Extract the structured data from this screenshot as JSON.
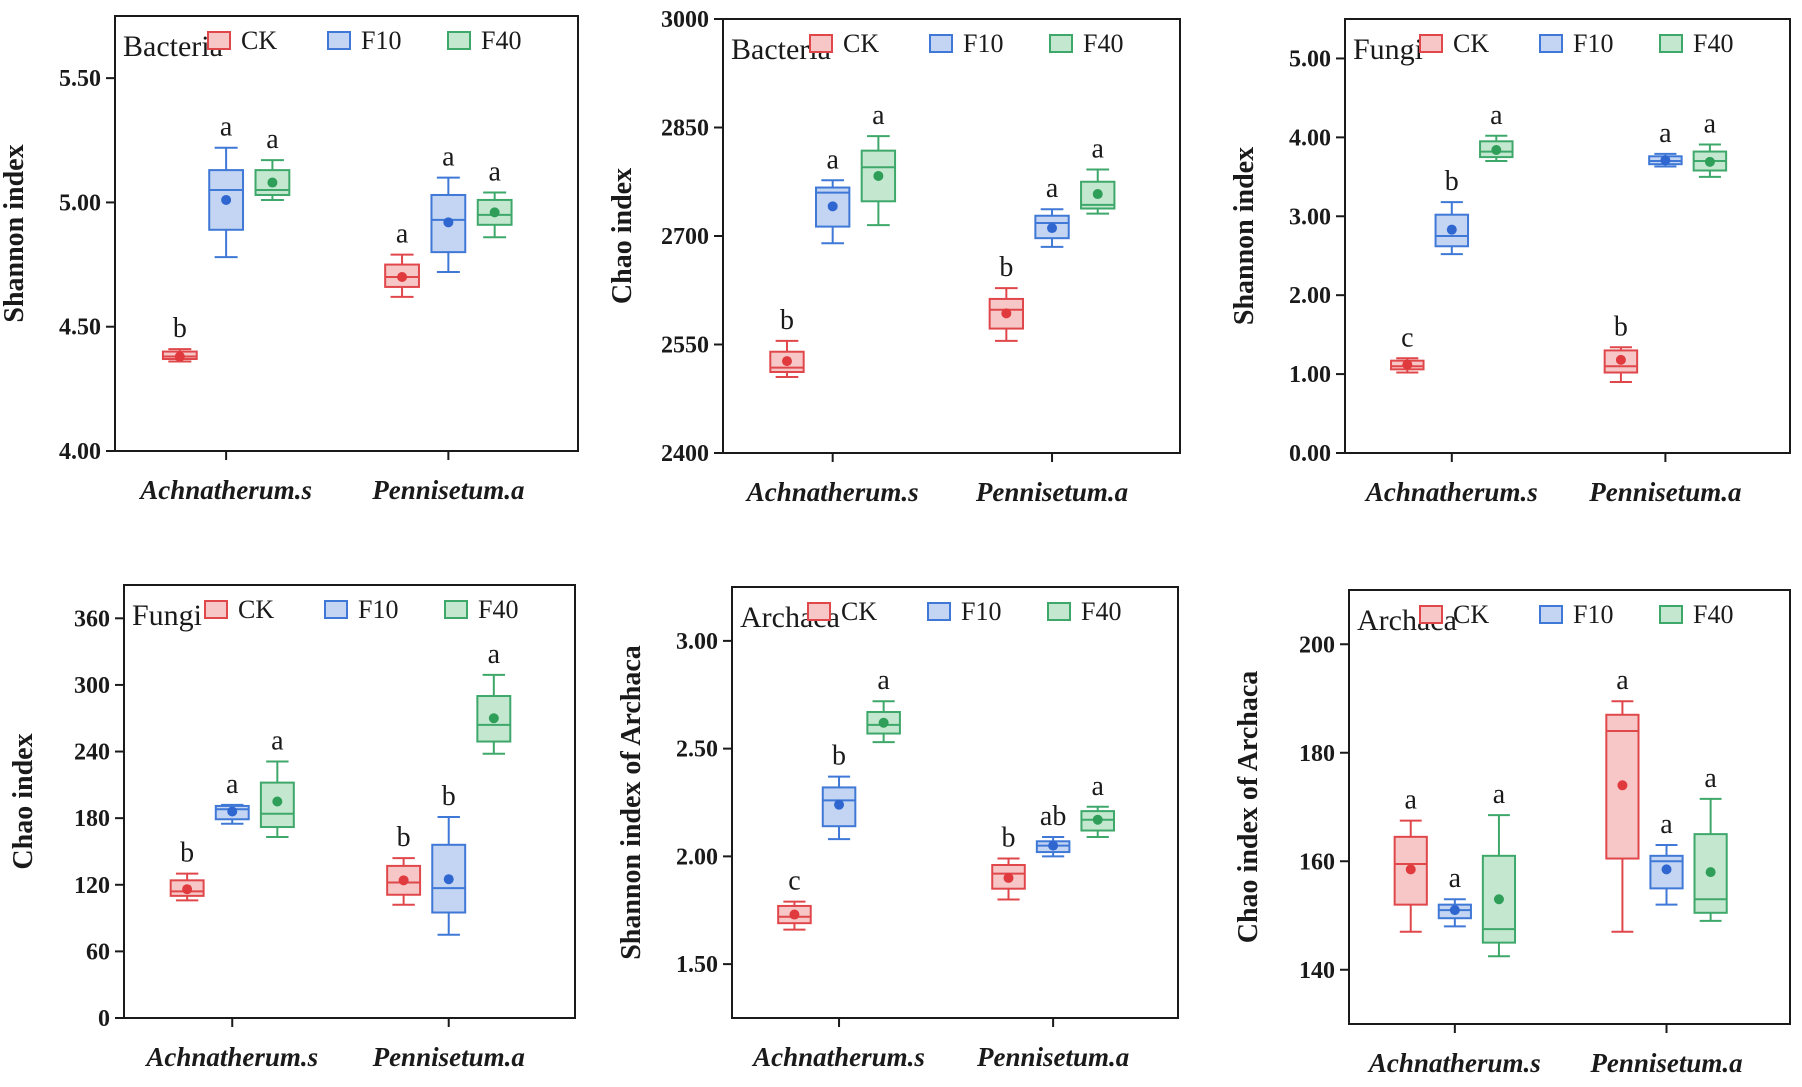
{
  "colors": {
    "CK": {
      "stroke": "#e0474b",
      "fill": "#f6c7c6",
      "dot": "#e03a3e"
    },
    "F10": {
      "stroke": "#3f78d6",
      "fill": "#c3d5f3",
      "dot": "#2f66d0"
    },
    "F40": {
      "stroke": "#3ea86a",
      "fill": "#c4e8cf",
      "dot": "#2e9e58"
    },
    "axis": "#1a1a1a"
  },
  "chart_data": [
    {
      "type": "box",
      "title": "Bacteria",
      "ylabel": "Shannon index",
      "categories": [
        "Achnatherum.s",
        "Pennisetum.a"
      ],
      "legend": [
        "CK",
        "F10",
        "F40"
      ],
      "ylim": [
        4.0,
        5.75
      ],
      "yticks": [
        4.0,
        4.5,
        5.0,
        5.5
      ],
      "tick_labels": [
        "4.00",
        "4.50",
        "5.00",
        "5.50"
      ],
      "groups": [
        {
          "category": "Achnatherum.s",
          "boxes": [
            {
              "series": "CK",
              "min": 4.36,
              "q1": 4.37,
              "median": 4.38,
              "q3": 4.4,
              "max": 4.41,
              "mean": 4.38,
              "label": "b"
            },
            {
              "series": "F10",
              "min": 4.78,
              "q1": 4.89,
              "median": 5.05,
              "q3": 5.13,
              "max": 5.22,
              "mean": 5.01,
              "label": "a"
            },
            {
              "series": "F40",
              "min": 5.01,
              "q1": 5.03,
              "median": 5.05,
              "q3": 5.13,
              "max": 5.17,
              "mean": 5.08,
              "label": "a"
            }
          ]
        },
        {
          "category": "Pennisetum.a",
          "boxes": [
            {
              "series": "CK",
              "min": 4.62,
              "q1": 4.66,
              "median": 4.7,
              "q3": 4.75,
              "max": 4.79,
              "mean": 4.7,
              "label": "a"
            },
            {
              "series": "F10",
              "min": 4.72,
              "q1": 4.8,
              "median": 4.93,
              "q3": 5.03,
              "max": 5.1,
              "mean": 4.92,
              "label": "a"
            },
            {
              "series": "F40",
              "min": 4.86,
              "q1": 4.91,
              "median": 4.95,
              "q3": 5.01,
              "max": 5.04,
              "mean": 4.96,
              "label": "a"
            }
          ]
        }
      ]
    },
    {
      "type": "box",
      "title": "Bacteria",
      "ylabel": "Chao index",
      "categories": [
        "Achnatherum.s",
        "Pennisetum.a"
      ],
      "legend": [
        "CK",
        "F10",
        "F40"
      ],
      "ylim": [
        2400,
        3000
      ],
      "yticks": [
        2400,
        2550,
        2700,
        2850,
        3000
      ],
      "tick_labels": [
        "2400",
        "2550",
        "2700",
        "2850",
        "3000"
      ],
      "groups": [
        {
          "category": "Achnatherum.s",
          "boxes": [
            {
              "series": "CK",
              "min": 2505,
              "q1": 2512,
              "median": 2518,
              "q3": 2540,
              "max": 2555,
              "mean": 2527,
              "label": "b"
            },
            {
              "series": "F10",
              "min": 2690,
              "q1": 2713,
              "median": 2760,
              "q3": 2767,
              "max": 2777,
              "mean": 2741,
              "label": "a"
            },
            {
              "series": "F40",
              "min": 2715,
              "q1": 2748,
              "median": 2795,
              "q3": 2818,
              "max": 2838,
              "mean": 2783,
              "label": "a"
            }
          ]
        },
        {
          "category": "Pennisetum.a",
          "boxes": [
            {
              "series": "CK",
              "min": 2555,
              "q1": 2572,
              "median": 2598,
              "q3": 2613,
              "max": 2628,
              "mean": 2593,
              "label": "b"
            },
            {
              "series": "F10",
              "min": 2685,
              "q1": 2697,
              "median": 2718,
              "q3": 2728,
              "max": 2737,
              "mean": 2711,
              "label": "a"
            },
            {
              "series": "F40",
              "min": 2731,
              "q1": 2738,
              "median": 2743,
              "q3": 2775,
              "max": 2792,
              "mean": 2758,
              "label": "a"
            }
          ]
        }
      ]
    },
    {
      "type": "box",
      "title": "Fungi",
      "ylabel": "Shannon index",
      "categories": [
        "Achnatherum.s",
        "Pennisetum.a"
      ],
      "legend": [
        "CK",
        "F10",
        "F40"
      ],
      "ylim": [
        0,
        5.5
      ],
      "yticks": [
        0,
        1,
        2,
        3,
        4,
        5
      ],
      "tick_labels": [
        "0.00",
        "1.00",
        "2.00",
        "3.00",
        "4.00",
        "5.00"
      ],
      "groups": [
        {
          "category": "Achnatherum.s",
          "boxes": [
            {
              "series": "CK",
              "min": 1.02,
              "q1": 1.06,
              "median": 1.1,
              "q3": 1.17,
              "max": 1.2,
              "mean": 1.12,
              "label": "c"
            },
            {
              "series": "F10",
              "min": 2.52,
              "q1": 2.62,
              "median": 2.75,
              "q3": 3.02,
              "max": 3.18,
              "mean": 2.83,
              "label": "b"
            },
            {
              "series": "F40",
              "min": 3.7,
              "q1": 3.75,
              "median": 3.82,
              "q3": 3.95,
              "max": 4.02,
              "mean": 3.84,
              "label": "a"
            }
          ]
        },
        {
          "category": "Pennisetum.a",
          "boxes": [
            {
              "series": "CK",
              "min": 0.9,
              "q1": 1.02,
              "median": 1.1,
              "q3": 1.3,
              "max": 1.34,
              "mean": 1.18,
              "label": "b"
            },
            {
              "series": "F10",
              "min": 3.63,
              "q1": 3.66,
              "median": 3.7,
              "q3": 3.76,
              "max": 3.79,
              "mean": 3.71,
              "label": "a"
            },
            {
              "series": "F40",
              "min": 3.5,
              "q1": 3.58,
              "median": 3.7,
              "q3": 3.82,
              "max": 3.91,
              "mean": 3.69,
              "label": "a"
            }
          ]
        }
      ]
    },
    {
      "type": "box",
      "title": "Fungi",
      "ylabel": "Chao index",
      "categories": [
        "Achnatherum.s",
        "Pennisetum.a"
      ],
      "legend": [
        "CK",
        "F10",
        "F40"
      ],
      "ylim": [
        0,
        390
      ],
      "yticks": [
        0,
        60,
        120,
        180,
        240,
        300,
        360
      ],
      "tick_labels": [
        "0",
        "60",
        "120",
        "180",
        "240",
        "300",
        "360"
      ],
      "groups": [
        {
          "category": "Achnatherum.s",
          "boxes": [
            {
              "series": "CK",
              "min": 106,
              "q1": 110,
              "median": 114,
              "q3": 124,
              "max": 130,
              "mean": 116,
              "label": "b"
            },
            {
              "series": "F10",
              "min": 175,
              "q1": 179,
              "median": 188,
              "q3": 191,
              "max": 192,
              "mean": 186,
              "label": "a"
            },
            {
              "series": "F40",
              "min": 163,
              "q1": 172,
              "median": 184,
              "q3": 212,
              "max": 231,
              "mean": 195,
              "label": "a"
            }
          ]
        },
        {
          "category": "Pennisetum.a",
          "boxes": [
            {
              "series": "CK",
              "min": 102,
              "q1": 111,
              "median": 122,
              "q3": 137,
              "max": 144,
              "mean": 124,
              "label": "b"
            },
            {
              "series": "F10",
              "min": 75,
              "q1": 95,
              "median": 117,
              "q3": 156,
              "max": 181,
              "mean": 125,
              "label": "b"
            },
            {
              "series": "F40",
              "min": 238,
              "q1": 249,
              "median": 264,
              "q3": 290,
              "max": 309,
              "mean": 270,
              "label": "a"
            }
          ]
        }
      ]
    },
    {
      "type": "box",
      "title": "Archaca",
      "ylabel": "Shannon index of Archaca",
      "categories": [
        "Achnatherum.s",
        "Pennisetum.a"
      ],
      "legend": [
        "CK",
        "F10",
        "F40"
      ],
      "ylim": [
        1.25,
        3.25
      ],
      "yticks": [
        1.5,
        2.0,
        2.5,
        3.0
      ],
      "tick_labels": [
        "1.50",
        "2.00",
        "2.50",
        "3.00"
      ],
      "groups": [
        {
          "category": "Achnatherum.s",
          "boxes": [
            {
              "series": "CK",
              "min": 1.66,
              "q1": 1.69,
              "median": 1.72,
              "q3": 1.77,
              "max": 1.79,
              "mean": 1.73,
              "label": "c"
            },
            {
              "series": "F10",
              "min": 2.08,
              "q1": 2.14,
              "median": 2.26,
              "q3": 2.32,
              "max": 2.37,
              "mean": 2.24,
              "label": "b"
            },
            {
              "series": "F40",
              "min": 2.53,
              "q1": 2.57,
              "median": 2.61,
              "q3": 2.67,
              "max": 2.72,
              "mean": 2.62,
              "label": "a"
            }
          ]
        },
        {
          "category": "Pennisetum.a",
          "boxes": [
            {
              "series": "CK",
              "min": 1.8,
              "q1": 1.85,
              "median": 1.92,
              "q3": 1.96,
              "max": 1.99,
              "mean": 1.9,
              "label": "b"
            },
            {
              "series": "F10",
              "min": 2.0,
              "q1": 2.02,
              "median": 2.05,
              "q3": 2.07,
              "max": 2.09,
              "mean": 2.05,
              "label": "ab"
            },
            {
              "series": "F40",
              "min": 2.09,
              "q1": 2.12,
              "median": 2.17,
              "q3": 2.21,
              "max": 2.23,
              "mean": 2.17,
              "label": "a"
            }
          ]
        }
      ]
    },
    {
      "type": "box",
      "title": "Archaca",
      "ylabel": "Chao index of Archaca",
      "categories": [
        "Achnatherum.s",
        "Pennisetum.a"
      ],
      "legend": [
        "CK",
        "F10",
        "F40"
      ],
      "ylim": [
        130,
        210
      ],
      "yticks": [
        140,
        160,
        180,
        200
      ],
      "tick_labels": [
        "140",
        "160",
        "180",
        "200"
      ],
      "groups": [
        {
          "category": "Achnatherum.s",
          "boxes": [
            {
              "series": "CK",
              "min": 147,
              "q1": 152,
              "median": 159.5,
              "q3": 164.5,
              "max": 167.5,
              "mean": 158.5,
              "label": "a"
            },
            {
              "series": "F10",
              "min": 148,
              "q1": 149.5,
              "median": 151,
              "q3": 152,
              "max": 153,
              "mean": 151,
              "label": "a"
            },
            {
              "series": "F40",
              "min": 142.5,
              "q1": 145,
              "median": 147.5,
              "q3": 161,
              "max": 168.5,
              "mean": 153,
              "label": "a"
            }
          ]
        },
        {
          "category": "Pennisetum.a",
          "boxes": [
            {
              "series": "CK",
              "min": 147,
              "q1": 160.5,
              "median": 184,
              "q3": 187,
              "max": 189.5,
              "mean": 174,
              "label": "a"
            },
            {
              "series": "F10",
              "min": 152,
              "q1": 155,
              "median": 160,
              "q3": 161,
              "max": 163,
              "mean": 158.5,
              "label": "a"
            },
            {
              "series": "F40",
              "min": 149,
              "q1": 150.5,
              "median": 153,
              "q3": 165,
              "max": 171.5,
              "mean": 158,
              "label": "a"
            }
          ]
        }
      ]
    }
  ]
}
